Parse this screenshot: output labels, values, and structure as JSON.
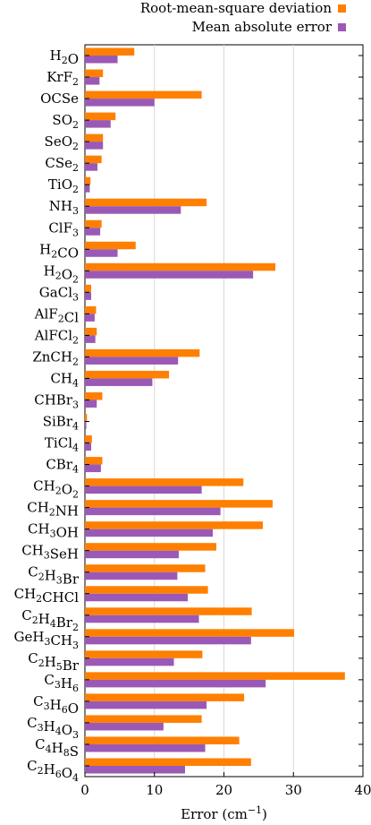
{
  "chart_data": {
    "type": "bar",
    "orientation": "horizontal",
    "categories": [
      {
        "base": "H",
        "parts": [
          [
            "H",
            ""
          ],
          [
            "2",
            "sub"
          ],
          [
            "O",
            ""
          ]
        ]
      },
      {
        "base": "KrF2",
        "parts": [
          [
            "KrF",
            ""
          ],
          [
            "2",
            "sub"
          ]
        ]
      },
      {
        "base": "OCSe",
        "parts": [
          [
            "OCSe",
            ""
          ]
        ]
      },
      {
        "base": "SO2",
        "parts": [
          [
            "SO",
            ""
          ],
          [
            "2",
            "sub"
          ]
        ]
      },
      {
        "base": "SeO2",
        "parts": [
          [
            "SeO",
            ""
          ],
          [
            "2",
            "sub"
          ]
        ]
      },
      {
        "base": "CSe2",
        "parts": [
          [
            "CSe",
            ""
          ],
          [
            "2",
            "sub"
          ]
        ]
      },
      {
        "base": "TiO2",
        "parts": [
          [
            "TiO",
            ""
          ],
          [
            "2",
            "sub"
          ]
        ]
      },
      {
        "base": "NH3",
        "parts": [
          [
            "NH",
            ""
          ],
          [
            "3",
            "sub"
          ]
        ]
      },
      {
        "base": "ClF3",
        "parts": [
          [
            "ClF",
            ""
          ],
          [
            "3",
            "sub"
          ]
        ]
      },
      {
        "base": "H2CO",
        "parts": [
          [
            "H",
            ""
          ],
          [
            "2",
            "sub"
          ],
          [
            "CO",
            ""
          ]
        ]
      },
      {
        "base": "H2O2",
        "parts": [
          [
            "H",
            ""
          ],
          [
            "2",
            "sub"
          ],
          [
            "O",
            ""
          ],
          [
            "2",
            "sub"
          ]
        ]
      },
      {
        "base": "GaCl3",
        "parts": [
          [
            "GaCl",
            ""
          ],
          [
            "3",
            "sub"
          ]
        ]
      },
      {
        "base": "AlF2Cl",
        "parts": [
          [
            "AlF",
            ""
          ],
          [
            "2",
            "sub"
          ],
          [
            "Cl",
            ""
          ]
        ]
      },
      {
        "base": "AlFCl2",
        "parts": [
          [
            "AlFCl",
            ""
          ],
          [
            "2",
            "sub"
          ]
        ]
      },
      {
        "base": "ZnCH2",
        "parts": [
          [
            "ZnCH",
            ""
          ],
          [
            "2",
            "sub"
          ]
        ]
      },
      {
        "base": "CH4",
        "parts": [
          [
            "CH",
            ""
          ],
          [
            "4",
            "sub"
          ]
        ]
      },
      {
        "base": "CHBr3",
        "parts": [
          [
            "CHBr",
            ""
          ],
          [
            "3",
            "sub"
          ]
        ]
      },
      {
        "base": "SiBr4",
        "parts": [
          [
            "SiBr",
            ""
          ],
          [
            "4",
            "sub"
          ]
        ]
      },
      {
        "base": "TiCl4",
        "parts": [
          [
            "TiCl",
            ""
          ],
          [
            "4",
            "sub"
          ]
        ]
      },
      {
        "base": "CBr4",
        "parts": [
          [
            "CBr",
            ""
          ],
          [
            "4",
            "sub"
          ]
        ]
      },
      {
        "base": "CH2O2",
        "parts": [
          [
            "CH",
            ""
          ],
          [
            "2",
            "sub"
          ],
          [
            "O",
            ""
          ],
          [
            "2",
            "sub"
          ]
        ]
      },
      {
        "base": "CH2NH",
        "parts": [
          [
            "CH",
            ""
          ],
          [
            "2",
            "sub"
          ],
          [
            "NH",
            ""
          ]
        ]
      },
      {
        "base": "CH3OH",
        "parts": [
          [
            "CH",
            ""
          ],
          [
            "3",
            "sub"
          ],
          [
            "OH",
            ""
          ]
        ]
      },
      {
        "base": "CH3SeH",
        "parts": [
          [
            "CH",
            ""
          ],
          [
            "3",
            "sub"
          ],
          [
            "SeH",
            ""
          ]
        ]
      },
      {
        "base": "C2H3Br",
        "parts": [
          [
            "C",
            ""
          ],
          [
            "2",
            "sub"
          ],
          [
            "H",
            ""
          ],
          [
            "3",
            "sub"
          ],
          [
            "Br",
            ""
          ]
        ]
      },
      {
        "base": "CH2CHCl",
        "parts": [
          [
            "CH",
            ""
          ],
          [
            "2",
            "sub"
          ],
          [
            "CHCl",
            ""
          ]
        ]
      },
      {
        "base": "C2H4Br2",
        "parts": [
          [
            "C",
            ""
          ],
          [
            "2",
            "sub"
          ],
          [
            "H",
            ""
          ],
          [
            "4",
            "sub"
          ],
          [
            "Br",
            ""
          ],
          [
            "2",
            "sub"
          ]
        ]
      },
      {
        "base": "GeH3CH3",
        "parts": [
          [
            "GeH",
            ""
          ],
          [
            "3",
            "sub"
          ],
          [
            "CH",
            ""
          ],
          [
            "3",
            "sub"
          ]
        ]
      },
      {
        "base": "C2H5Br",
        "parts": [
          [
            "C",
            ""
          ],
          [
            "2",
            "sub"
          ],
          [
            "H",
            ""
          ],
          [
            "5",
            "sub"
          ],
          [
            "Br",
            ""
          ]
        ]
      },
      {
        "base": "C3H6",
        "parts": [
          [
            "C",
            ""
          ],
          [
            "3",
            "sub"
          ],
          [
            "H",
            ""
          ],
          [
            "6",
            "sub"
          ]
        ]
      },
      {
        "base": "C3H6O",
        "parts": [
          [
            "C",
            ""
          ],
          [
            "3",
            "sub"
          ],
          [
            "H",
            ""
          ],
          [
            "6",
            "sub"
          ],
          [
            "O",
            ""
          ]
        ]
      },
      {
        "base": "C3H4O3",
        "parts": [
          [
            "C",
            ""
          ],
          [
            "3",
            "sub"
          ],
          [
            "H",
            ""
          ],
          [
            "4",
            "sub"
          ],
          [
            "O",
            ""
          ],
          [
            "3",
            "sub"
          ]
        ]
      },
      {
        "base": "C4H8S",
        "parts": [
          [
            "C",
            ""
          ],
          [
            "4",
            "sub"
          ],
          [
            "H",
            ""
          ],
          [
            "8",
            "sub"
          ],
          [
            "S",
            ""
          ]
        ]
      },
      {
        "base": "C2H6O4",
        "parts": [
          [
            "C",
            ""
          ],
          [
            "2",
            "sub"
          ],
          [
            "H",
            ""
          ],
          [
            "6",
            "sub"
          ],
          [
            "O",
            ""
          ],
          [
            "4",
            "sub"
          ]
        ]
      }
    ],
    "series": [
      {
        "name": "Root-mean-square deviation",
        "color": "#ff7f00",
        "values": [
          7.1,
          2.6,
          16.8,
          4.4,
          2.6,
          2.4,
          0.8,
          17.5,
          2.4,
          7.3,
          27.4,
          0.9,
          1.6,
          1.7,
          16.5,
          12.1,
          2.5,
          0.3,
          1.0,
          2.5,
          22.8,
          27.0,
          25.6,
          18.9,
          17.3,
          17.7,
          24.0,
          30.1,
          16.9,
          37.4,
          22.9,
          16.8,
          22.2,
          23.9
        ]
      },
      {
        "name": "Mean absolute error",
        "color": "#9b59b6",
        "values": [
          4.7,
          2.1,
          10.0,
          3.7,
          2.6,
          1.8,
          0.7,
          13.8,
          2.2,
          4.7,
          24.2,
          0.9,
          1.4,
          1.5,
          13.4,
          9.7,
          1.7,
          0.2,
          0.9,
          2.3,
          16.8,
          19.5,
          18.4,
          13.5,
          13.3,
          14.8,
          16.4,
          23.9,
          12.8,
          26.0,
          17.5,
          11.3,
          17.3,
          14.4
        ]
      }
    ],
    "xlim": [
      0,
      40
    ],
    "xticks": [
      "0",
      "10",
      "20",
      "30",
      "40"
    ],
    "xtick_values": [
      0,
      10,
      20,
      30,
      40
    ],
    "xlabel": {
      "text": "Error (cm",
      "sup": "−1",
      "close": ")"
    },
    "grid": "vertical",
    "legend": "top-right"
  }
}
